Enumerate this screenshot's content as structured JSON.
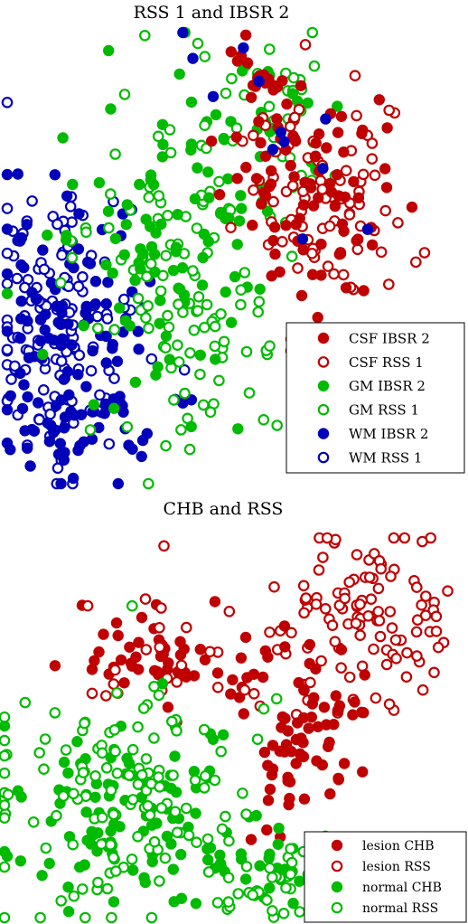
{
  "chart_data": [
    {
      "type": "scatter",
      "title": "RSS 1 and IBSR 2",
      "xlabel": "",
      "ylabel": "",
      "axes": "hidden",
      "grid": false,
      "legend_position": "bottom-right",
      "series": [
        {
          "name": "CSF IBSR 2",
          "marker": "filled",
          "color": "#c00000"
        },
        {
          "name": "CSF RSS 1",
          "marker": "open",
          "color": "#c00000"
        },
        {
          "name": "GM IBSR 2",
          "marker": "filled",
          "color": "#00bb00"
        },
        {
          "name": "GM RSS 1",
          "marker": "open",
          "color": "#00bb00"
        },
        {
          "name": "WM IBSR 2",
          "marker": "filled",
          "color": "#0000bb"
        },
        {
          "name": "WM RSS 1",
          "marker": "open",
          "color": "#0000bb"
        }
      ]
    },
    {
      "type": "scatter",
      "title": "CHB and RSS",
      "xlabel": "",
      "ylabel": "",
      "axes": "hidden",
      "grid": false,
      "legend_position": "bottom-right",
      "series": [
        {
          "name": "lesion CHB",
          "marker": "filled",
          "color": "#c00000"
        },
        {
          "name": "lesion RSS",
          "marker": "open",
          "color": "#c00000"
        },
        {
          "name": "normal CHB",
          "marker": "filled",
          "color": "#00bb00"
        },
        {
          "name": "normal RSS",
          "marker": "open",
          "color": "#00bb00"
        }
      ]
    }
  ]
}
